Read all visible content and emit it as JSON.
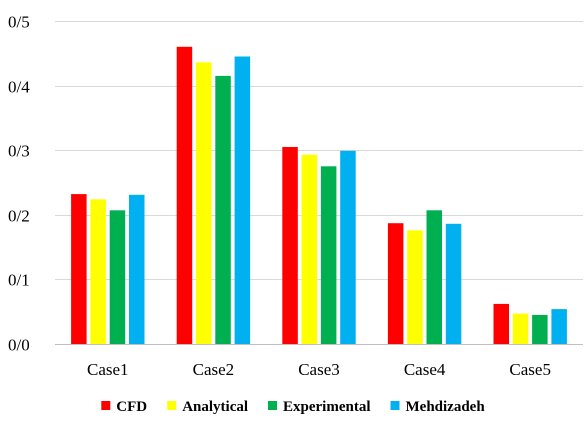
{
  "chart_data": {
    "type": "bar",
    "categories": [
      "Case1",
      "Case2",
      "Case3",
      "Case4",
      "Case5"
    ],
    "series": [
      {
        "name": "CFD",
        "color": "#ff0000",
        "values": [
          0.232,
          0.46,
          0.305,
          0.187,
          0.062
        ]
      },
      {
        "name": "Analytical",
        "color": "#ffff00",
        "values": [
          0.224,
          0.436,
          0.293,
          0.176,
          0.047
        ]
      },
      {
        "name": "Experimental",
        "color": "#00b050",
        "values": [
          0.207,
          0.415,
          0.275,
          0.207,
          0.045
        ]
      },
      {
        "name": "Mehdizadeh",
        "color": "#00b0f0",
        "values": [
          0.231,
          0.445,
          0.299,
          0.186,
          0.054
        ]
      }
    ],
    "title": "",
    "xlabel": "",
    "ylabel": "",
    "ylim": [
      0,
      0.5
    ],
    "yticks": [
      0,
      0.1,
      0.2,
      0.3,
      0.4,
      0.5
    ],
    "ytick_labels": [
      "0/0",
      "0/1",
      "0/2",
      "0/3",
      "0/4",
      "0/5"
    ],
    "grid": true,
    "legend_position": "bottom"
  }
}
